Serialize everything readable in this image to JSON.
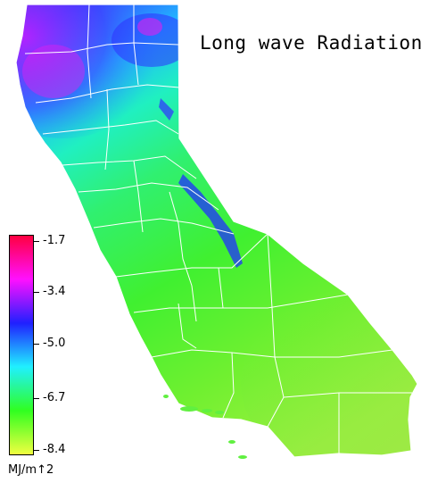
{
  "title": "Long wave Radiation",
  "colors": {
    "background": "#ffffff",
    "boundary": "#ffffff",
    "scale_high": "#ff0040",
    "scale_magenta": "#ff10ff",
    "scale_blue": "#2020ff",
    "scale_cyan": "#20f0ff",
    "scale_green": "#30ff20",
    "scale_low": "#f0ff40"
  },
  "legend": {
    "ticks": [
      "-1.7",
      "-3.4",
      "-5.0",
      "-6.7",
      "-8.4"
    ],
    "unit": "MJ/m↑2"
  }
}
